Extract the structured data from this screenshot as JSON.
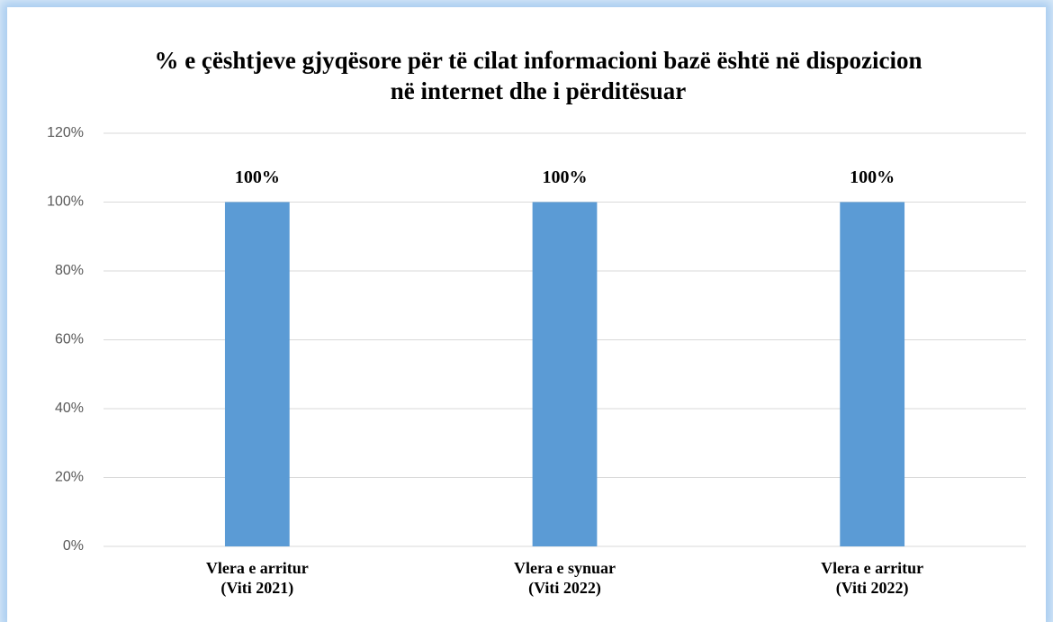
{
  "chart_data": {
    "type": "bar",
    "title": "% e çështjeve gjyqësore për të cilat informacioni bazë është në dispozicion në internet dhe i përditësuar",
    "categories": [
      "Vlera e arritur (Viti 2021)",
      "Vlera e synuar (Viti 2022)",
      "Vlera e arritur (Viti 2022)"
    ],
    "values": [
      100,
      100,
      100
    ],
    "value_labels": [
      "100%",
      "100%",
      "100%"
    ],
    "color": "#5b9bd5",
    "ylim": [
      0,
      120
    ],
    "yticks": [
      {
        "value": 0,
        "label": "0%"
      },
      {
        "value": 20,
        "label": "20%"
      },
      {
        "value": 40,
        "label": "40%"
      },
      {
        "value": 60,
        "label": "60%"
      },
      {
        "value": 80,
        "label": "80%"
      },
      {
        "value": 100,
        "label": "100%"
      },
      {
        "value": 120,
        "label": "120%"
      }
    ],
    "grid": true
  }
}
